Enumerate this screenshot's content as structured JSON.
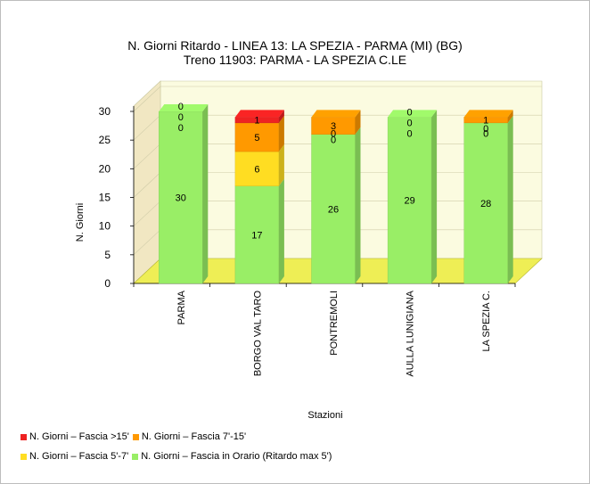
{
  "chart_data": {
    "type": "bar",
    "stacked": true,
    "title": "N. Giorni Ritardo - LINEA 13: LA SPEZIA - PARMA (MI) (BG)",
    "subtitle": "Treno 11903: PARMA - LA SPEZIA C.LE",
    "xlabel": "Stazioni",
    "ylabel": "N. Giorni",
    "ylim": [
      0,
      30
    ],
    "yticks": [
      "0",
      "5",
      "10",
      "15",
      "20",
      "25",
      "30"
    ],
    "categories": [
      "PARMA",
      "BORGO VAL TARO",
      "PONTREMOLI",
      "AULLA LUNIGIANA",
      "LA SPEZIA C."
    ],
    "series": [
      {
        "name": "N. Giorni – Fascia in Orario (Ritardo max 5')",
        "color": "#99ee66",
        "values": [
          30,
          17,
          26,
          29,
          28
        ]
      },
      {
        "name": "N. Giorni – Fascia 5'-7'",
        "color": "#ffdd22",
        "values": [
          0,
          6,
          0,
          0,
          0
        ]
      },
      {
        "name": "N. Giorni – Fascia 7'-15'",
        "color": "#ff9900",
        "values": [
          0,
          5,
          3,
          0,
          1
        ]
      },
      {
        "name": "N. Giorni – Fascia >15'",
        "color": "#ee2222",
        "values": [
          0,
          1,
          0,
          0,
          0
        ]
      }
    ],
    "grid": true,
    "legend_position": "bottom"
  },
  "legend_rows": [
    [
      3,
      2
    ],
    [
      1,
      0
    ]
  ]
}
